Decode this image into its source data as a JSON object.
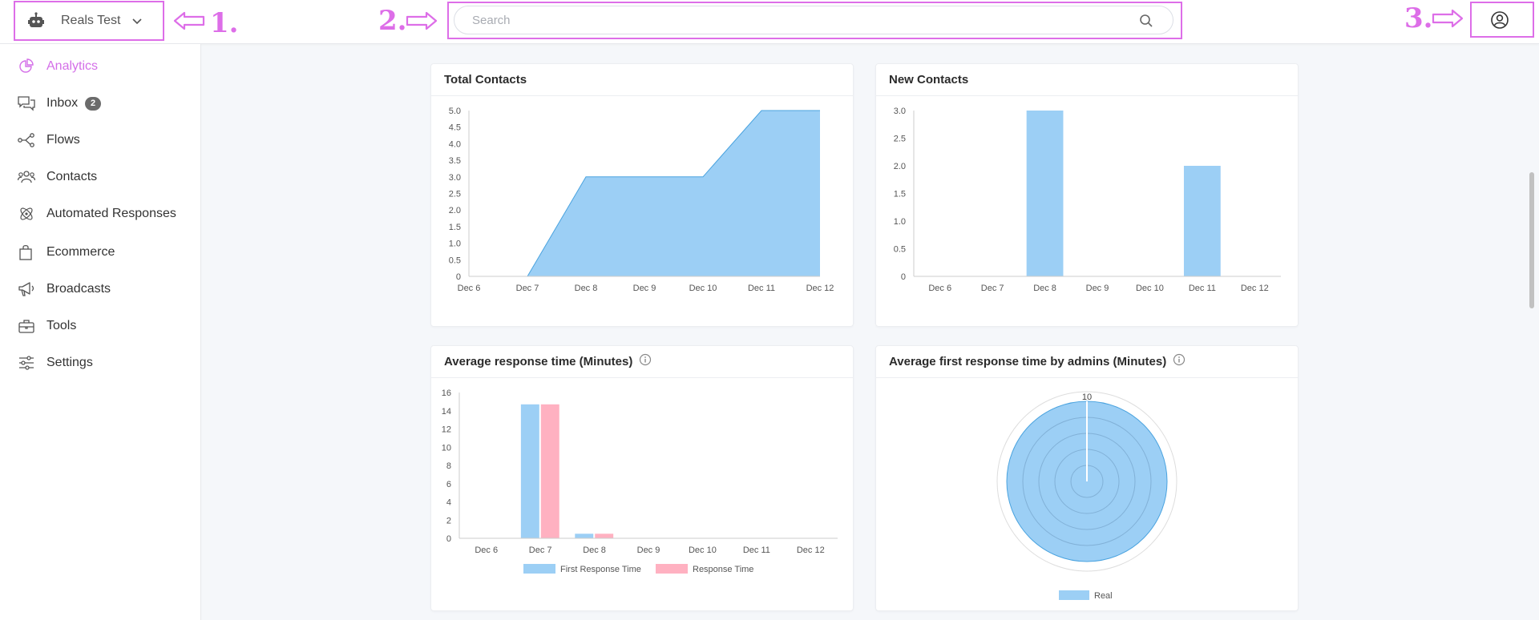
{
  "header": {
    "bot_name": "Reals Test",
    "search_placeholder": "Search",
    "annotations": [
      "1.",
      "2.",
      "3."
    ]
  },
  "sidebar": {
    "items": [
      {
        "label": "Analytics",
        "icon": "analytics-icon",
        "active": true
      },
      {
        "label": "Inbox",
        "icon": "inbox-icon",
        "badge": "2"
      },
      {
        "label": "Flows",
        "icon": "flows-icon"
      },
      {
        "label": "Contacts",
        "icon": "contacts-icon"
      },
      {
        "label": "Automated Responses",
        "icon": "automated-responses-icon"
      },
      {
        "label": "Ecommerce",
        "icon": "ecommerce-icon"
      },
      {
        "label": "Broadcasts",
        "icon": "broadcasts-icon"
      },
      {
        "label": "Tools",
        "icon": "tools-icon"
      },
      {
        "label": "Settings",
        "icon": "settings-icon"
      }
    ]
  },
  "colors": {
    "accent": "#d46fe8",
    "annotation": "#dd6ee8",
    "series_blue": "#9ccff5",
    "series_blue_stroke": "#4aa3df",
    "series_pink": "#ffb1c1"
  },
  "cards": {
    "total_contacts": {
      "title": "Total Contacts"
    },
    "new_contacts": {
      "title": "New Contacts"
    },
    "avg_response": {
      "title": "Average response time (Minutes)"
    },
    "avg_first_response": {
      "title": "Average first response time by admins (Minutes)"
    }
  },
  "chart_data": [
    {
      "id": "total_contacts",
      "type": "area",
      "title": "Total Contacts",
      "categories": [
        "Dec 6",
        "Dec 7",
        "Dec 8",
        "Dec 9",
        "Dec 10",
        "Dec 11",
        "Dec 12"
      ],
      "values": [
        0,
        0,
        3,
        3,
        3,
        5,
        5
      ],
      "ylim": [
        0,
        5
      ],
      "yticks": [
        "0",
        "0.5",
        "1.0",
        "1.5",
        "2.0",
        "2.5",
        "3.0",
        "3.5",
        "4.0",
        "4.5",
        "5.0"
      ]
    },
    {
      "id": "new_contacts",
      "type": "bar",
      "title": "New Contacts",
      "categories": [
        "Dec 6",
        "Dec 7",
        "Dec 8",
        "Dec 9",
        "Dec 10",
        "Dec 11",
        "Dec 12"
      ],
      "values": [
        0,
        0,
        3,
        0,
        0,
        2,
        0
      ],
      "ylim": [
        0,
        3
      ],
      "yticks": [
        "0",
        "0.5",
        "1.0",
        "1.5",
        "2.0",
        "2.5",
        "3.0"
      ]
    },
    {
      "id": "avg_response",
      "type": "bar",
      "title": "Average response time (Minutes)",
      "categories": [
        "Dec 6",
        "Dec 7",
        "Dec 8",
        "Dec 9",
        "Dec 10",
        "Dec 11",
        "Dec 12"
      ],
      "series": [
        {
          "name": "First Response Time",
          "values": [
            0,
            14.7,
            0.5,
            0,
            0,
            0,
            0
          ]
        },
        {
          "name": "Response Time",
          "values": [
            0,
            14.7,
            0.5,
            0,
            0,
            0,
            0
          ]
        }
      ],
      "ylim": [
        0,
        16
      ],
      "yticks": [
        "0",
        "2",
        "4",
        "6",
        "8",
        "10",
        "12",
        "14",
        "16"
      ]
    },
    {
      "id": "avg_first_response",
      "type": "radar",
      "title": "Average first response time by admins (Minutes)",
      "series": [
        {
          "name": "Real",
          "value": 10
        }
      ],
      "rmax": 10,
      "max_label": "10"
    }
  ]
}
